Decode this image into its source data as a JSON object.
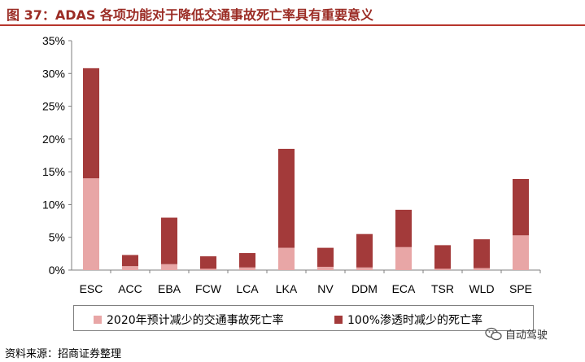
{
  "title": "图 37：ADAS 各项功能对于降低交通事故死亡率具有重要意义",
  "source": "资料来源：招商证券整理",
  "watermark": "自动驾驶",
  "colors": {
    "series1": "#e8a6a6",
    "series2": "#a33a3a",
    "title": "#9b2c25",
    "rule": "#b7352c"
  },
  "chart_data": {
    "type": "bar",
    "stacked": true,
    "title": "",
    "xlabel": "",
    "ylabel": "",
    "ylim": [
      0,
      35
    ],
    "yticks": [
      "0%",
      "5%",
      "10%",
      "15%",
      "20%",
      "25%",
      "30%",
      "35%"
    ],
    "grid": false,
    "legend_position": "bottom",
    "categories": [
      "ESC",
      "ACC",
      "EBA",
      "FCW",
      "LCA",
      "LKA",
      "NV",
      "DDM",
      "ECA",
      "TSR",
      "WLD",
      "SPE"
    ],
    "series": [
      {
        "name": "2020年预计减少的交通事故死亡率",
        "values": [
          14.0,
          0.6,
          0.9,
          0.2,
          0.4,
          3.4,
          0.5,
          0.4,
          3.5,
          0.2,
          0.3,
          5.3
        ]
      },
      {
        "name": "100%渗透时减少的死亡率",
        "values": [
          16.8,
          1.7,
          7.1,
          1.9,
          2.2,
          15.1,
          2.9,
          5.1,
          5.7,
          3.6,
          4.4,
          8.6
        ]
      }
    ]
  }
}
